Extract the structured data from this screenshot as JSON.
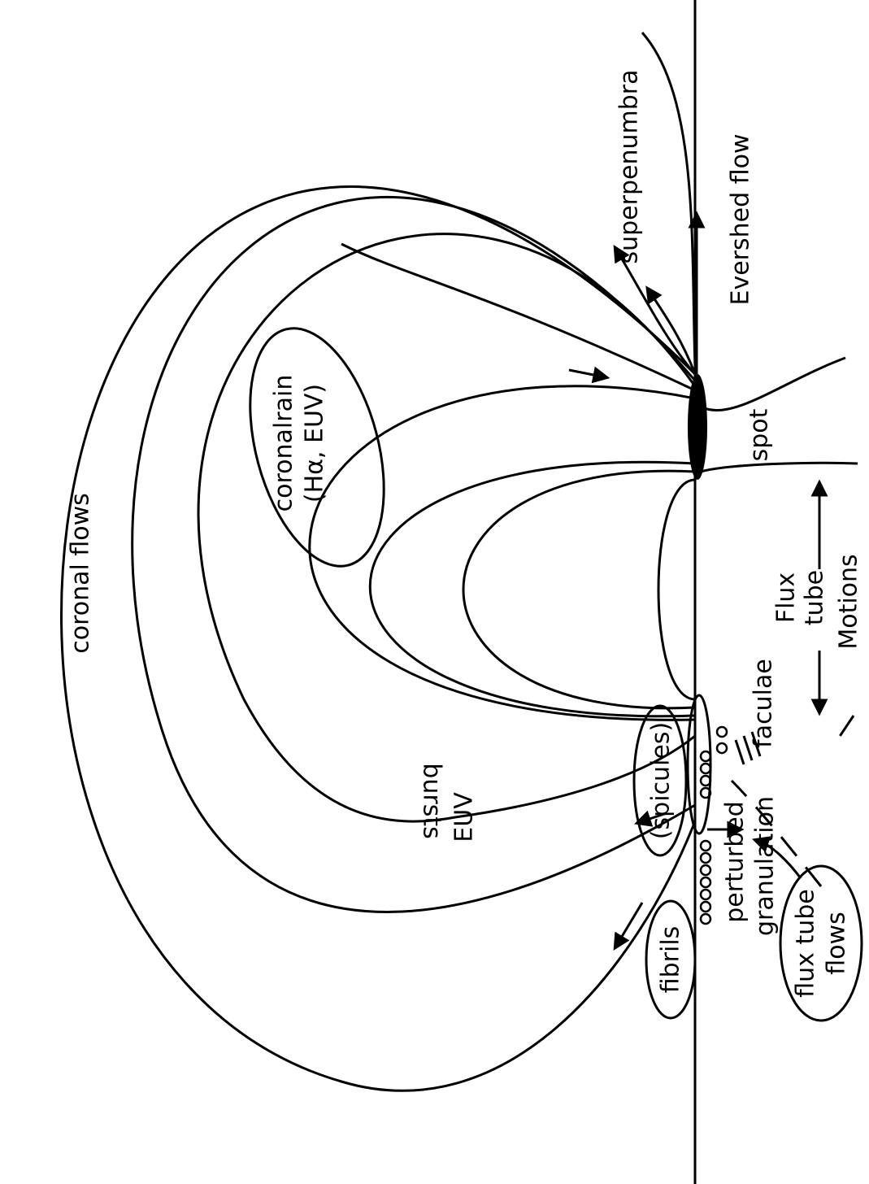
{
  "labels": {
    "coronal_flows": "coronal flows",
    "coronal_rain": "coronalrain",
    "coronal_rain_lines": "(Hα, EUV)",
    "superpenumbra": "superpenumbra",
    "evershed_flow": "Evershed flow",
    "spot": "spot",
    "flux": "Flux",
    "tube": "tube",
    "motions": "Motions",
    "faculae": "faculae",
    "spicules": "(spicules)",
    "euv": "EUV",
    "bursts": "bursts",
    "fibrils": "fibrils",
    "perturbed": "perturbed",
    "granulation": "granulation",
    "flux_tube": "flux tube",
    "flows": "flows"
  }
}
